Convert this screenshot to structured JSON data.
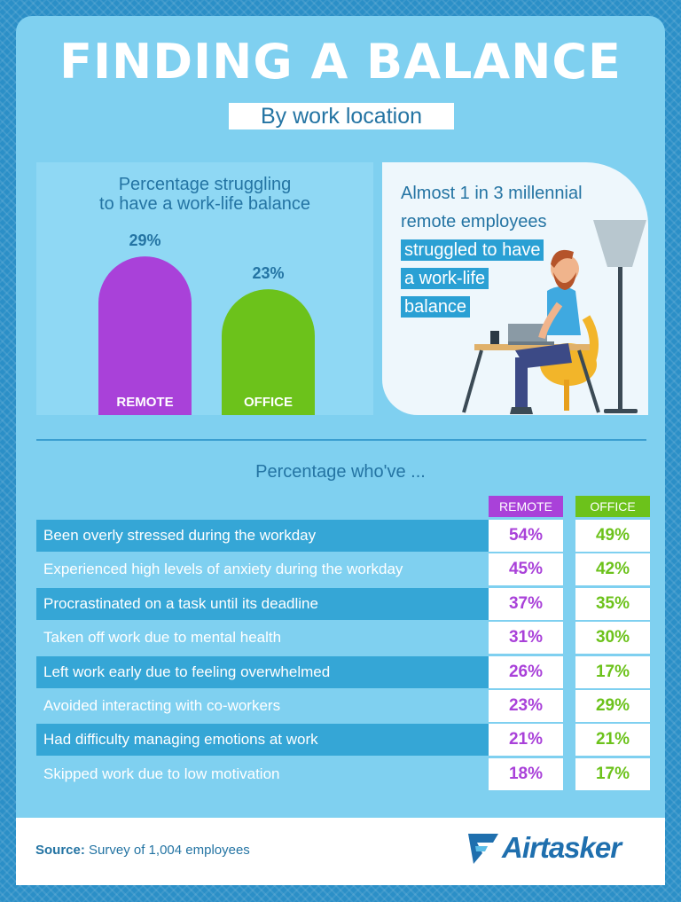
{
  "header": {
    "title": "FINDING A BALANCE",
    "subtitle": "By work location"
  },
  "chart_data": [
    {
      "type": "bar",
      "title": "Percentage struggling to have a work-life balance",
      "categories": [
        "REMOTE",
        "OFFICE"
      ],
      "values": [
        29,
        23
      ],
      "value_labels": [
        "29%",
        "23%"
      ],
      "colors": [
        "#a941d9",
        "#6cc21b"
      ]
    },
    {
      "type": "table",
      "title": "Percentage who've ...",
      "columns": [
        "REMOTE",
        "OFFICE"
      ],
      "rows": [
        {
          "label": "Been overly stressed during the workday",
          "remote": "54%",
          "office": "49%"
        },
        {
          "label": "Experienced high levels of anxiety during the workday",
          "remote": "45%",
          "office": "42%"
        },
        {
          "label": "Procrastinated on a task until its deadline",
          "remote": "37%",
          "office": "35%"
        },
        {
          "label": "Taken off work due to mental health",
          "remote": "31%",
          "office": "30%"
        },
        {
          "label": "Left work early due to feeling overwhelmed",
          "remote": "26%",
          "office": "17%"
        },
        {
          "label": "Avoided interacting with co-workers",
          "remote": "23%",
          "office": "29%"
        },
        {
          "label": "Had difficulty managing emotions at work",
          "remote": "21%",
          "office": "21%"
        },
        {
          "label": "Skipped work due to low motivation",
          "remote": "18%",
          "office": "17%"
        }
      ]
    }
  ],
  "chart_title_lines": [
    "Percentage struggling",
    "to have a work-life balance"
  ],
  "quote": {
    "line1": "Almost 1 in 3 millennial",
    "line2": "remote employees",
    "hl1": "struggled to have",
    "hl2": "a work-life",
    "hl3": "balance"
  },
  "colors": {
    "remote": "#a941d9",
    "office": "#6cc21b"
  },
  "footer": {
    "source_label": "Source:",
    "source_text": "Survey of 1,004 employees",
    "brand": "Airtasker"
  },
  "icons": [
    "person-laptop-illustration",
    "floor-lamp-icon",
    "airtasker-logo-icon"
  ]
}
